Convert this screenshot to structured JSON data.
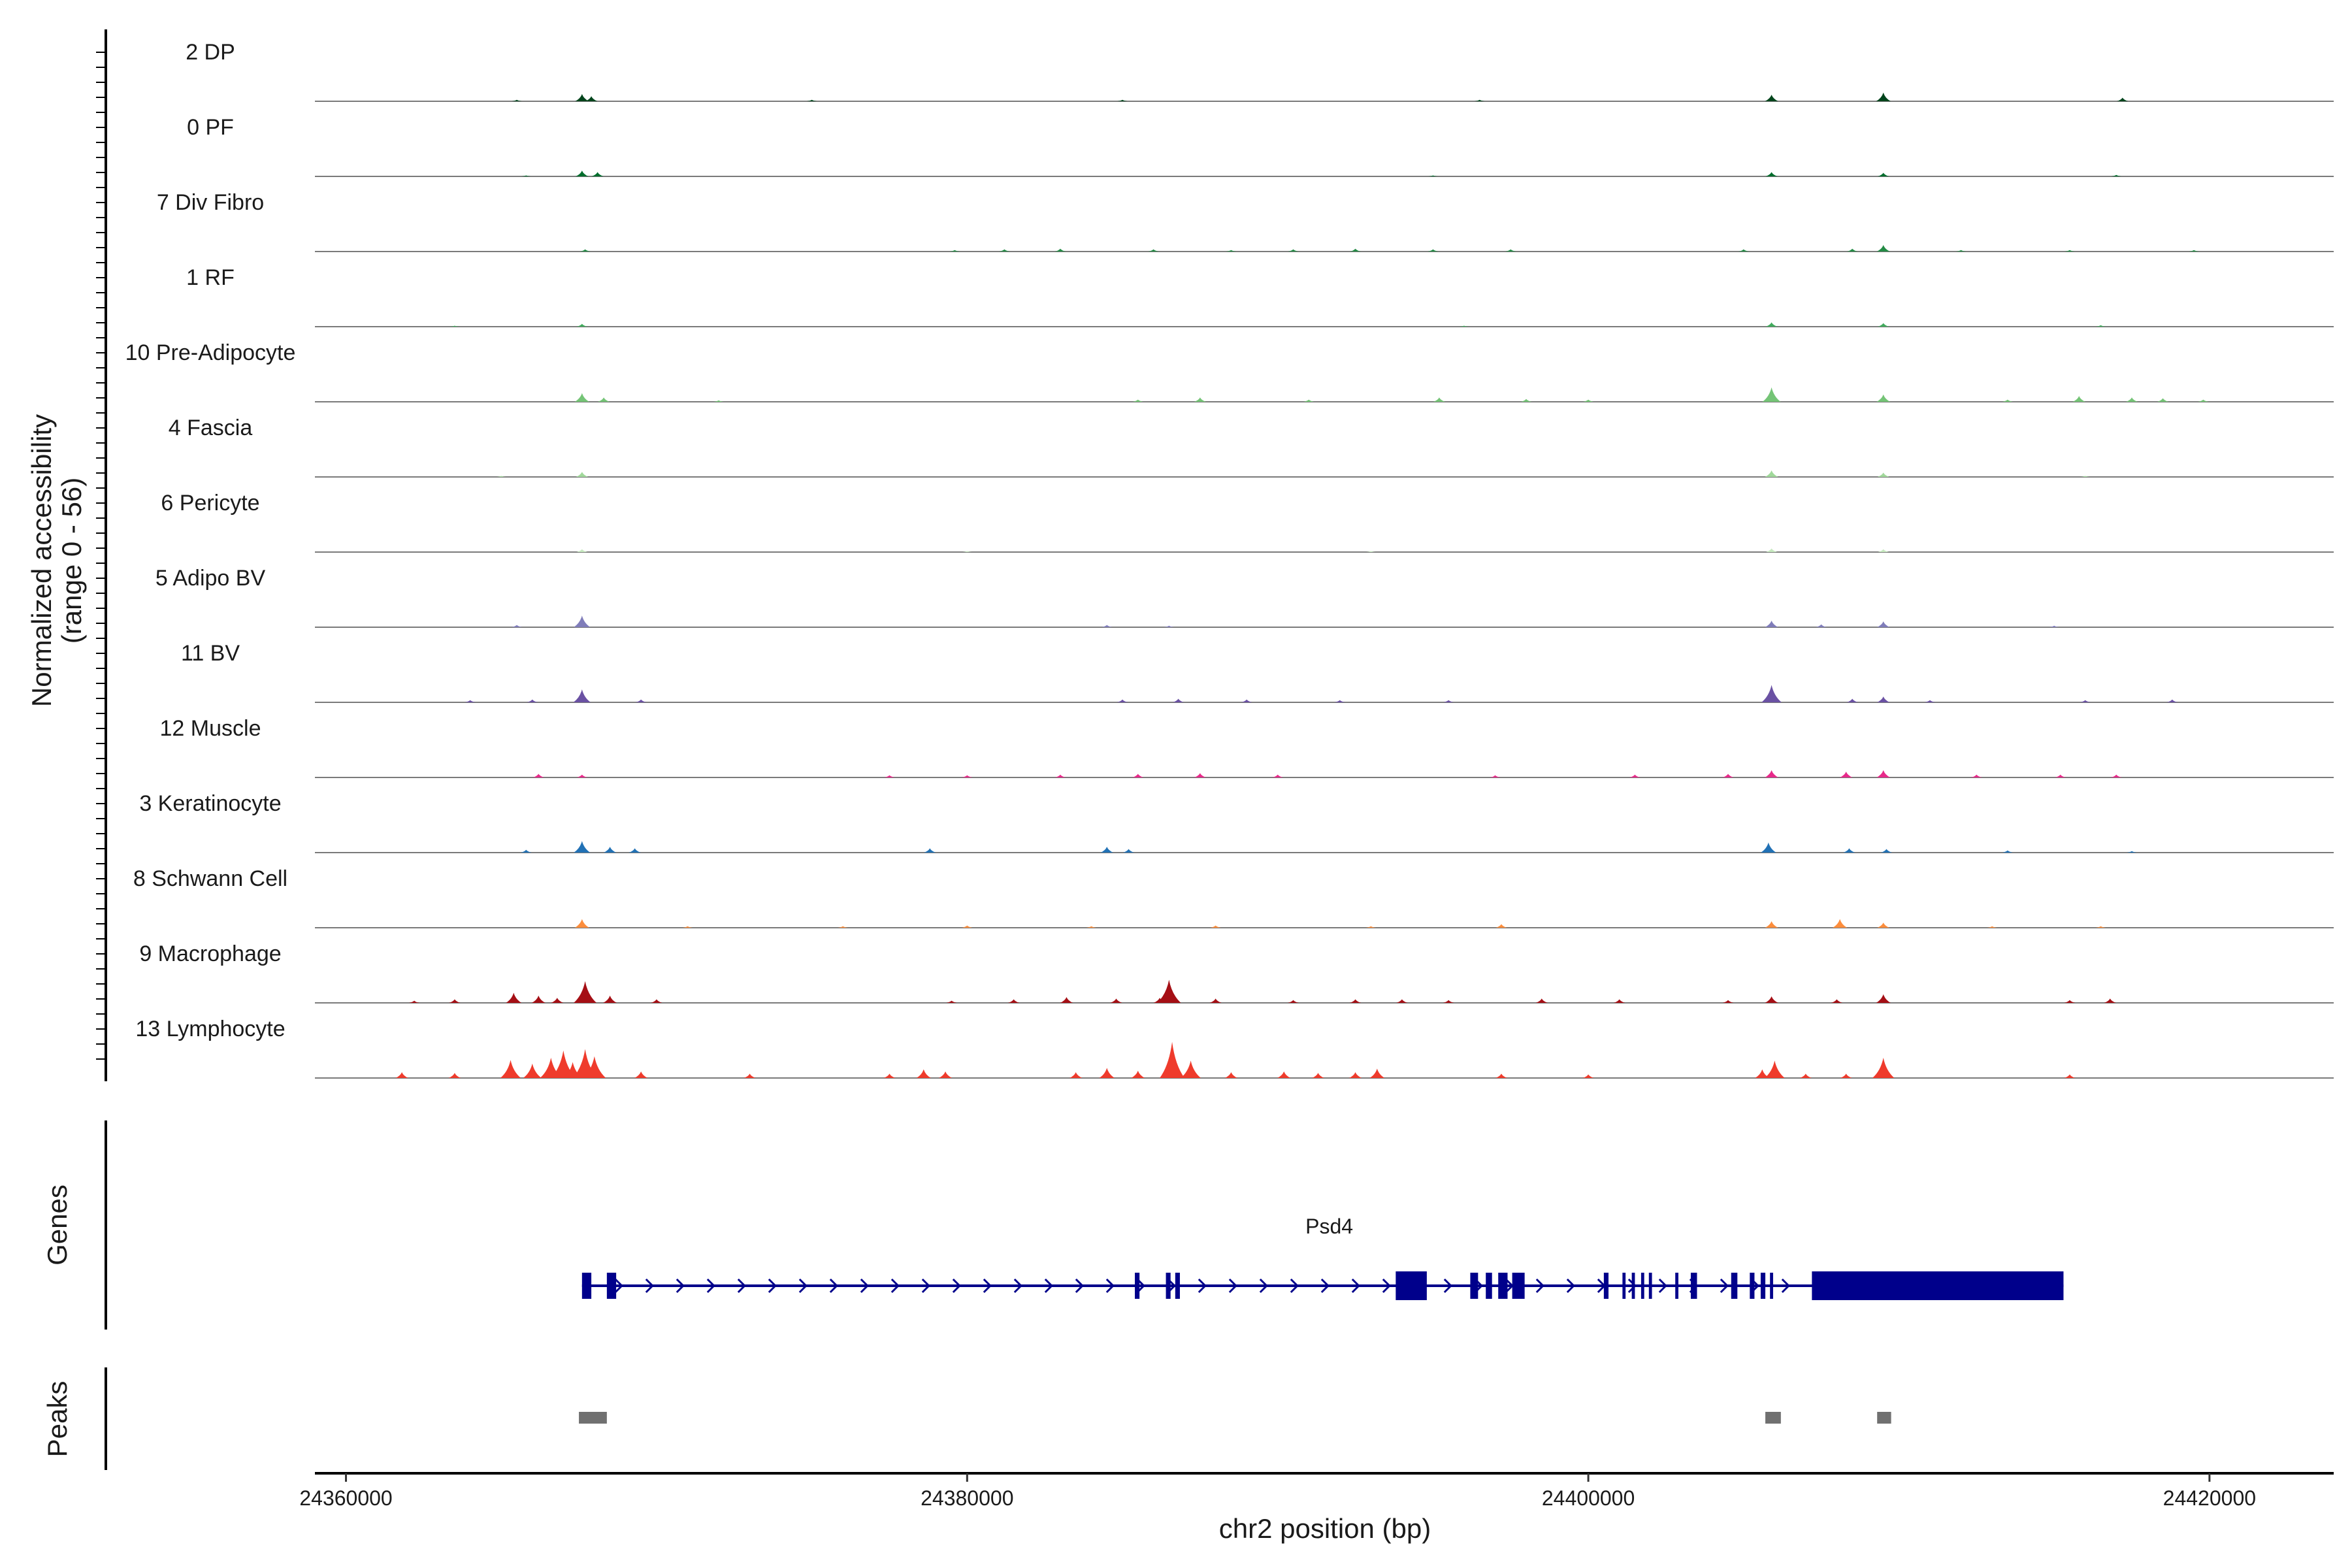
{
  "chart_data": {
    "type": "area",
    "title": "",
    "ylabel_line1": "Normalized accessibility",
    "ylabel_line2": "(range 0 - 56)",
    "y_range": [
      0,
      56
    ],
    "xlabel": "chr2 position (bp)",
    "xlim": [
      24359000,
      24424000
    ],
    "x_ticks": [
      24360000,
      24380000,
      24400000,
      24420000
    ],
    "x_tick_labels": [
      "24360000",
      "24380000",
      "24400000",
      "24420000"
    ],
    "genes_label": "Genes",
    "peaks_label": "Peaks",
    "tracks": [
      {
        "name": "2 DP",
        "color": "#00441b",
        "peaks": [
          [
            24367600,
            10
          ],
          [
            24367900,
            7
          ],
          [
            24405900,
            9
          ],
          [
            24409500,
            12
          ],
          [
            24417200,
            5
          ],
          [
            24365500,
            2
          ],
          [
            24375000,
            2
          ],
          [
            24396500,
            2
          ],
          [
            24385000,
            2
          ]
        ]
      },
      {
        "name": "0 PF",
        "color": "#006d2c",
        "peaks": [
          [
            24367600,
            8
          ],
          [
            24368100,
            6
          ],
          [
            24405900,
            6
          ],
          [
            24409500,
            5
          ],
          [
            24417000,
            2
          ],
          [
            24365800,
            1
          ],
          [
            24395000,
            1
          ]
        ]
      },
      {
        "name": "7 Div Fibro",
        "color": "#238b45",
        "peaks": [
          [
            24367700,
            3
          ],
          [
            24379600,
            2
          ],
          [
            24381200,
            3
          ],
          [
            24383000,
            4
          ],
          [
            24386000,
            3
          ],
          [
            24388500,
            2
          ],
          [
            24390500,
            3
          ],
          [
            24392500,
            4
          ],
          [
            24395000,
            3
          ],
          [
            24397500,
            3
          ],
          [
            24405000,
            3
          ],
          [
            24408500,
            4
          ],
          [
            24409500,
            9
          ],
          [
            24412000,
            2
          ],
          [
            24415500,
            2
          ],
          [
            24419500,
            2
          ]
        ]
      },
      {
        "name": "1 RF",
        "color": "#41ab5d",
        "peaks": [
          [
            24367600,
            4
          ],
          [
            24405900,
            6
          ],
          [
            24409500,
            5
          ],
          [
            24416500,
            2
          ],
          [
            24363500,
            1
          ],
          [
            24396000,
            1
          ]
        ]
      },
      {
        "name": "10 Pre-Adipocyte",
        "color": "#74c476",
        "peaks": [
          [
            24367600,
            12
          ],
          [
            24368300,
            6
          ],
          [
            24372000,
            2
          ],
          [
            24385500,
            3
          ],
          [
            24387500,
            6
          ],
          [
            24391000,
            3
          ],
          [
            24395200,
            6
          ],
          [
            24398000,
            4
          ],
          [
            24400000,
            3
          ],
          [
            24405900,
            20
          ],
          [
            24409500,
            10
          ],
          [
            24413500,
            3
          ],
          [
            24415800,
            8
          ],
          [
            24417500,
            6
          ],
          [
            24418500,
            5
          ],
          [
            24419800,
            3
          ]
        ]
      },
      {
        "name": "4 Fascia",
        "color": "#a1d99b",
        "peaks": [
          [
            24367600,
            7
          ],
          [
            24405900,
            9
          ],
          [
            24409500,
            6
          ],
          [
            24365000,
            1
          ],
          [
            24416000,
            1
          ]
        ]
      },
      {
        "name": "6 Pericyte",
        "color": "#c7e9c0",
        "peaks": [
          [
            24367600,
            4
          ],
          [
            24405900,
            5
          ],
          [
            24409500,
            4
          ],
          [
            24380000,
            1
          ],
          [
            24393000,
            1
          ]
        ]
      },
      {
        "name": "5 Adipo BV",
        "color": "#807dba",
        "peaks": [
          [
            24367600,
            16
          ],
          [
            24365500,
            3
          ],
          [
            24384500,
            3
          ],
          [
            24386500,
            2
          ],
          [
            24405900,
            9
          ],
          [
            24407500,
            4
          ],
          [
            24409500,
            8
          ],
          [
            24415000,
            2
          ]
        ]
      },
      {
        "name": "11 BV",
        "color": "#6a51a3",
        "peaks": [
          [
            24364000,
            3
          ],
          [
            24366000,
            4
          ],
          [
            24367600,
            18
          ],
          [
            24369500,
            4
          ],
          [
            24385000,
            4
          ],
          [
            24386800,
            5
          ],
          [
            24389000,
            4
          ],
          [
            24392000,
            3
          ],
          [
            24395500,
            3
          ],
          [
            24405900,
            24
          ],
          [
            24408500,
            5
          ],
          [
            24409500,
            8
          ],
          [
            24411000,
            3
          ],
          [
            24416000,
            3
          ],
          [
            24418800,
            4
          ]
        ]
      },
      {
        "name": "12 Muscle",
        "color": "#e7298a",
        "peaks": [
          [
            24366200,
            5
          ],
          [
            24367600,
            4
          ],
          [
            24377500,
            3
          ],
          [
            24380000,
            3
          ],
          [
            24383000,
            4
          ],
          [
            24385500,
            5
          ],
          [
            24387500,
            6
          ],
          [
            24390000,
            4
          ],
          [
            24397000,
            3
          ],
          [
            24401500,
            4
          ],
          [
            24404500,
            5
          ],
          [
            24405900,
            10
          ],
          [
            24408300,
            8
          ],
          [
            24409500,
            10
          ],
          [
            24412500,
            4
          ],
          [
            24415200,
            4
          ],
          [
            24417000,
            4
          ]
        ]
      },
      {
        "name": "3 Keratinocyte",
        "color": "#2171b5",
        "peaks": [
          [
            24365800,
            4
          ],
          [
            24367600,
            16
          ],
          [
            24368500,
            8
          ],
          [
            24369300,
            6
          ],
          [
            24378800,
            6
          ],
          [
            24384500,
            8
          ],
          [
            24385200,
            5
          ],
          [
            24405800,
            14
          ],
          [
            24408400,
            6
          ],
          [
            24409600,
            5
          ],
          [
            24413500,
            3
          ],
          [
            24417500,
            2
          ]
        ]
      },
      {
        "name": "8 Schwann Cell",
        "color": "#fd8d3c",
        "peaks": [
          [
            24367600,
            12
          ],
          [
            24371000,
            2
          ],
          [
            24376000,
            2
          ],
          [
            24380000,
            3
          ],
          [
            24384000,
            2
          ],
          [
            24388000,
            3
          ],
          [
            24393000,
            2
          ],
          [
            24397200,
            5
          ],
          [
            24405900,
            9
          ],
          [
            24408100,
            12
          ],
          [
            24409500,
            7
          ],
          [
            24413000,
            2
          ],
          [
            24416500,
            2
          ]
        ]
      },
      {
        "name": "9 Macrophage",
        "color": "#a50f15",
        "peaks": [
          [
            24362200,
            3
          ],
          [
            24363500,
            5
          ],
          [
            24365400,
            14
          ],
          [
            24366200,
            10
          ],
          [
            24366800,
            7
          ],
          [
            24367700,
            30
          ],
          [
            24368500,
            10
          ],
          [
            24370000,
            5
          ],
          [
            24379500,
            3
          ],
          [
            24381500,
            5
          ],
          [
            24383200,
            8
          ],
          [
            24384800,
            6
          ],
          [
            24386200,
            7
          ],
          [
            24386500,
            32
          ],
          [
            24388000,
            6
          ],
          [
            24390500,
            4
          ],
          [
            24392500,
            5
          ],
          [
            24394000,
            5
          ],
          [
            24395500,
            4
          ],
          [
            24398500,
            6
          ],
          [
            24401000,
            5
          ],
          [
            24404500,
            4
          ],
          [
            24405900,
            9
          ],
          [
            24408000,
            5
          ],
          [
            24409500,
            12
          ],
          [
            24415500,
            4
          ],
          [
            24416800,
            6
          ]
        ]
      },
      {
        "name": "13 Lymphocyte",
        "color": "#ef3b2c",
        "peaks": [
          [
            24361800,
            8
          ],
          [
            24363500,
            7
          ],
          [
            24365300,
            25
          ],
          [
            24366000,
            20
          ],
          [
            24366600,
            28
          ],
          [
            24367000,
            38
          ],
          [
            24367300,
            22
          ],
          [
            24367700,
            40
          ],
          [
            24368000,
            30
          ],
          [
            24369500,
            9
          ],
          [
            24373000,
            6
          ],
          [
            24377500,
            6
          ],
          [
            24378600,
            12
          ],
          [
            24379300,
            9
          ],
          [
            24383500,
            8
          ],
          [
            24384500,
            14
          ],
          [
            24385500,
            10
          ],
          [
            24386600,
            50
          ],
          [
            24387200,
            24
          ],
          [
            24388500,
            8
          ],
          [
            24390200,
            9
          ],
          [
            24391300,
            7
          ],
          [
            24392500,
            8
          ],
          [
            24393200,
            13
          ],
          [
            24397200,
            6
          ],
          [
            24400000,
            5
          ],
          [
            24405600,
            12
          ],
          [
            24406000,
            24
          ],
          [
            24407000,
            6
          ],
          [
            24408300,
            6
          ],
          [
            24409500,
            28
          ],
          [
            24415500,
            5
          ]
        ]
      }
    ],
    "gene": {
      "name": "Psd4",
      "start": 24367600,
      "end": 24415300,
      "strand": "+",
      "color": "#00008b",
      "exons": [
        [
          24367600,
          24367900
        ],
        [
          24368400,
          24368700
        ],
        [
          24385400,
          24385550
        ],
        [
          24386400,
          24386550
        ],
        [
          24386700,
          24386850
        ],
        [
          24393800,
          24394800
        ],
        [
          24396200,
          24396450
        ],
        [
          24396700,
          24396900
        ],
        [
          24397100,
          24397400
        ],
        [
          24397550,
          24397950
        ],
        [
          24400500,
          24400650
        ],
        [
          24401100,
          24401200
        ],
        [
          24401400,
          24401500
        ],
        [
          24401700,
          24401800
        ],
        [
          24401950,
          24402050
        ],
        [
          24402800,
          24402900
        ],
        [
          24403300,
          24403500
        ],
        [
          24404600,
          24404800
        ],
        [
          24405200,
          24405350
        ],
        [
          24405550,
          24405700
        ],
        [
          24405850,
          24405950
        ],
        [
          24407200,
          24415300
        ]
      ]
    },
    "peaks": [
      [
        24367500,
        24368400
      ],
      [
        24405700,
        24406200
      ],
      [
        24409300,
        24409750
      ]
    ],
    "peaks_color": "#707070"
  }
}
